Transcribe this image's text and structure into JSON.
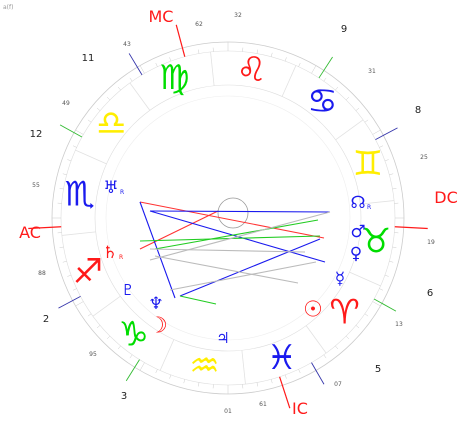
{
  "corner_label": "a(f)",
  "angles": [
    {
      "key": "mc",
      "label": "MC",
      "color": "#ff1a1a"
    },
    {
      "key": "ac",
      "label": "AC",
      "color": "#ff1a1a"
    },
    {
      "key": "dc",
      "label": "DC",
      "color": "#ff1a1a"
    },
    {
      "key": "ic",
      "label": "IC",
      "color": "#ff1a1a"
    }
  ],
  "houses": [
    {
      "number": "2",
      "degree": "88",
      "line_color": "#3333aa"
    },
    {
      "number": "3",
      "degree": "95",
      "line_color": "#33bb33"
    },
    {
      "number": "5",
      "degree": "07",
      "line_color": "#3333aa"
    },
    {
      "number": "6",
      "degree": "13",
      "line_color": "#33bb33"
    },
    {
      "number": "8",
      "degree": "25",
      "line_color": "#3333aa"
    },
    {
      "number": "9",
      "degree": "31",
      "line_color": "#33bb33"
    },
    {
      "number": "11",
      "degree": "43",
      "line_color": "#3333aa"
    },
    {
      "number": "12",
      "degree": "49",
      "line_color": "#33bb33"
    }
  ],
  "angle_degrees": {
    "mc": "32",
    "mc2": "62",
    "ac": "55",
    "dc": "19",
    "ic": "01",
    "ic2": "61"
  },
  "signs": [
    {
      "name": "leo-icon",
      "glyph": "♌",
      "color": "#ff1a1a"
    },
    {
      "name": "cancer-icon",
      "glyph": "♋",
      "color": "#1a1aee"
    },
    {
      "name": "gemini-icon",
      "glyph": "♊",
      "color": "#ffee00"
    },
    {
      "name": "taurus-icon",
      "glyph": "♉",
      "color": "#00dd00"
    },
    {
      "name": "aries-icon",
      "glyph": "♈",
      "color": "#ff1a1a"
    },
    {
      "name": "pisces-icon",
      "glyph": "♓",
      "color": "#1a1aee"
    },
    {
      "name": "aquarius-icon",
      "glyph": "♒",
      "color": "#ffee00"
    },
    {
      "name": "capricorn-icon",
      "glyph": "♑",
      "color": "#00dd00"
    },
    {
      "name": "sagittarius-icon",
      "glyph": "♐",
      "color": "#ff1a1a"
    },
    {
      "name": "scorpio-icon",
      "glyph": "♏",
      "color": "#1a1aee"
    },
    {
      "name": "libra-icon",
      "glyph": "♎",
      "color": "#ffee00"
    },
    {
      "name": "virgo-icon",
      "glyph": "♍",
      "color": "#00dd00"
    }
  ],
  "planets": [
    {
      "name": "uranus-icon",
      "glyph": "♅",
      "color": "#1a1aee",
      "retro": "R"
    },
    {
      "name": "saturn-icon",
      "glyph": "♄",
      "color": "#ff1a1a",
      "retro": "R"
    },
    {
      "name": "pluto-icon",
      "glyph": "♇",
      "color": "#1a1aee",
      "retro": ""
    },
    {
      "name": "neptune-icon",
      "glyph": "♆",
      "color": "#1a1aee",
      "retro": ""
    },
    {
      "name": "moon-icon",
      "glyph": "☽",
      "color": "#ff1a1a",
      "retro": ""
    },
    {
      "name": "jupiter-icon",
      "glyph": "♃",
      "color": "#1a1aee",
      "retro": ""
    },
    {
      "name": "sun-icon",
      "glyph": "☉",
      "color": "#ff1a1a",
      "retro": ""
    },
    {
      "name": "venus-icon",
      "glyph": "♀",
      "color": "#1a1aee",
      "retro": ""
    },
    {
      "name": "mercury-icon",
      "glyph": "☿",
      "color": "#1a1aee",
      "retro": ""
    },
    {
      "name": "mars-icon",
      "glyph": "♂",
      "color": "#1a1aee",
      "retro": ""
    },
    {
      "name": "node-icon",
      "glyph": "☊",
      "color": "#1a1aee",
      "retro": "R"
    }
  ],
  "aspects": [
    {
      "color": "#ff3333"
    },
    {
      "color": "#ff3333"
    },
    {
      "color": "#1a1aee"
    },
    {
      "color": "#1a1aee"
    },
    {
      "color": "#1a1aee"
    },
    {
      "color": "#1a1aee"
    },
    {
      "color": "#22cc22"
    },
    {
      "color": "#22cc22"
    },
    {
      "color": "#22cc22"
    },
    {
      "color": "#bbbbbb"
    },
    {
      "color": "#bbbbbb"
    },
    {
      "color": "#bbbbbb"
    },
    {
      "color": "#bbbbbb"
    }
  ]
}
